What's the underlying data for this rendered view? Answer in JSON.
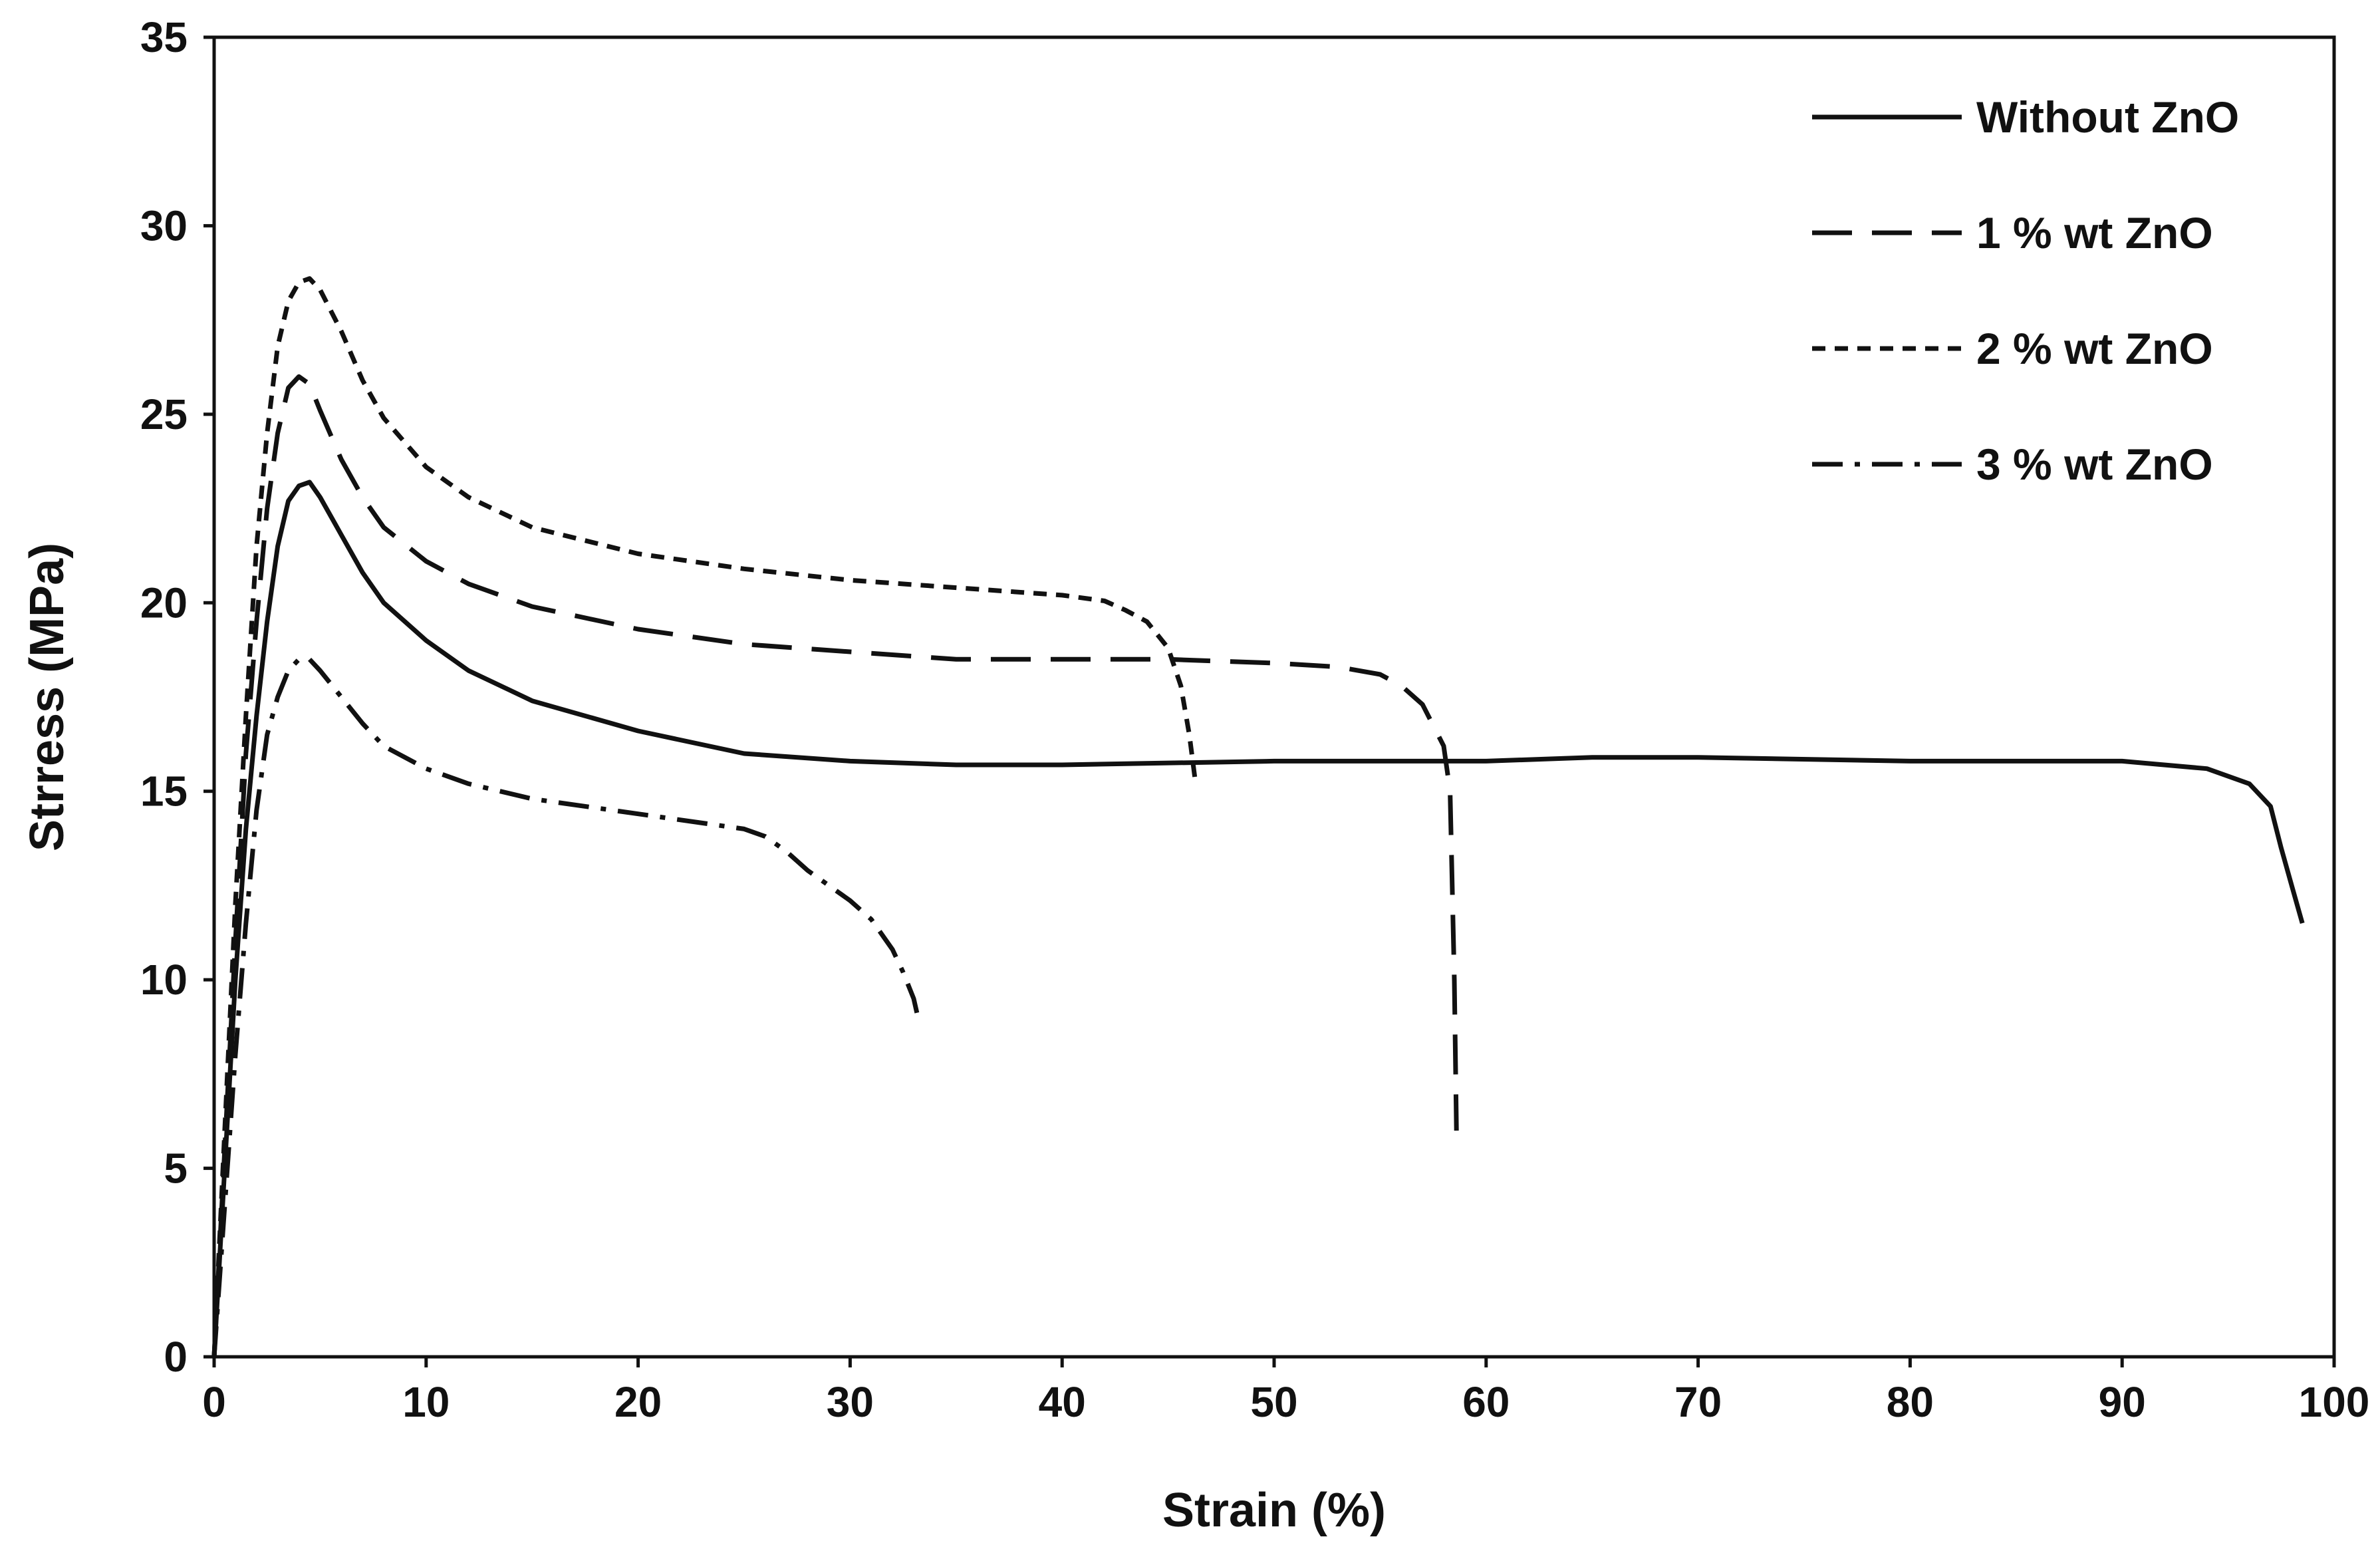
{
  "chart_data": {
    "type": "line",
    "title": "",
    "xlabel": "Strain (%)",
    "ylabel": "Strress  (MPa)",
    "xlim": [
      0,
      100
    ],
    "ylim": [
      0,
      35
    ],
    "xticks": [
      "0",
      "10",
      "20",
      "30",
      "40",
      "50",
      "60",
      "70",
      "80",
      "90",
      "100"
    ],
    "yticks": [
      "0",
      "5",
      "10",
      "15",
      "20",
      "25",
      "30",
      "35"
    ],
    "grid": false,
    "legend_position": "top-right",
    "series": [
      {
        "name": "Without ZnO",
        "dash": "solid",
        "points": [
          [
            0,
            0
          ],
          [
            0.5,
            5
          ],
          [
            1,
            10
          ],
          [
            1.5,
            14
          ],
          [
            2,
            17
          ],
          [
            2.5,
            19.5
          ],
          [
            3,
            21.5
          ],
          [
            3.5,
            22.7
          ],
          [
            4,
            23.1
          ],
          [
            4.5,
            23.2
          ],
          [
            5,
            22.8
          ],
          [
            6,
            21.8
          ],
          [
            7,
            20.8
          ],
          [
            8,
            20
          ],
          [
            10,
            19
          ],
          [
            12,
            18.2
          ],
          [
            15,
            17.4
          ],
          [
            20,
            16.6
          ],
          [
            25,
            16
          ],
          [
            30,
            15.8
          ],
          [
            35,
            15.7
          ],
          [
            40,
            15.7
          ],
          [
            50,
            15.8
          ],
          [
            60,
            15.8
          ],
          [
            65,
            15.9
          ],
          [
            70,
            15.9
          ],
          [
            80,
            15.8
          ],
          [
            90,
            15.8
          ],
          [
            94,
            15.6
          ],
          [
            96,
            15.2
          ],
          [
            97,
            14.6
          ],
          [
            97.5,
            13.5
          ],
          [
            98,
            12.5
          ],
          [
            98.5,
            11.5
          ]
        ]
      },
      {
        "name": "1 % wt ZnO",
        "dash": "long-dash",
        "points": [
          [
            0,
            0
          ],
          [
            0.5,
            5.5
          ],
          [
            1,
            11
          ],
          [
            1.5,
            16
          ],
          [
            2,
            19.5
          ],
          [
            2.5,
            22.5
          ],
          [
            3,
            24.5
          ],
          [
            3.5,
            25.7
          ],
          [
            4,
            26
          ],
          [
            4.5,
            25.8
          ],
          [
            5,
            25.1
          ],
          [
            6,
            23.8
          ],
          [
            7,
            22.8
          ],
          [
            8,
            22
          ],
          [
            10,
            21.1
          ],
          [
            12,
            20.5
          ],
          [
            15,
            19.9
          ],
          [
            20,
            19.3
          ],
          [
            25,
            18.9
          ],
          [
            30,
            18.7
          ],
          [
            35,
            18.5
          ],
          [
            40,
            18.5
          ],
          [
            45,
            18.5
          ],
          [
            50,
            18.4
          ],
          [
            53,
            18.3
          ],
          [
            55,
            18.1
          ],
          [
            56,
            17.8
          ],
          [
            57,
            17.3
          ],
          [
            58,
            16.2
          ],
          [
            58.3,
            15
          ],
          [
            58.5,
            10
          ],
          [
            58.6,
            6
          ]
        ]
      },
      {
        "name": "2 % wt ZnO",
        "dash": "short-dash",
        "points": [
          [
            0,
            0
          ],
          [
            0.5,
            6
          ],
          [
            1,
            12
          ],
          [
            1.5,
            17
          ],
          [
            2,
            21.5
          ],
          [
            2.5,
            24.5
          ],
          [
            3,
            26.8
          ],
          [
            3.5,
            28
          ],
          [
            4,
            28.5
          ],
          [
            4.5,
            28.6
          ],
          [
            5,
            28.3
          ],
          [
            6,
            27.2
          ],
          [
            7,
            25.9
          ],
          [
            8,
            24.9
          ],
          [
            10,
            23.6
          ],
          [
            12,
            22.8
          ],
          [
            15,
            22
          ],
          [
            20,
            21.3
          ],
          [
            25,
            20.9
          ],
          [
            30,
            20.6
          ],
          [
            35,
            20.4
          ],
          [
            40,
            20.2
          ],
          [
            42,
            20.05
          ],
          [
            43,
            19.8
          ],
          [
            44,
            19.5
          ],
          [
            45,
            18.8
          ],
          [
            45.6,
            17.8
          ],
          [
            46,
            16.5
          ],
          [
            46.3,
            15.2
          ]
        ]
      },
      {
        "name": "3 % wt ZnO",
        "dash": "dash-dot",
        "points": [
          [
            0,
            0
          ],
          [
            0.5,
            4
          ],
          [
            1,
            8
          ],
          [
            1.5,
            11.5
          ],
          [
            2,
            14.5
          ],
          [
            2.5,
            16.5
          ],
          [
            3,
            17.5
          ],
          [
            3.5,
            18.2
          ],
          [
            4,
            18.5
          ],
          [
            4.5,
            18.5
          ],
          [
            5,
            18.2
          ],
          [
            6,
            17.5
          ],
          [
            7,
            16.8
          ],
          [
            8,
            16.2
          ],
          [
            10,
            15.6
          ],
          [
            12,
            15.2
          ],
          [
            15,
            14.8
          ],
          [
            20,
            14.4
          ],
          [
            25,
            14
          ],
          [
            26,
            13.8
          ],
          [
            27,
            13.4
          ],
          [
            28,
            12.9
          ],
          [
            30,
            12.1
          ],
          [
            31,
            11.6
          ],
          [
            32,
            10.8
          ],
          [
            32.5,
            10.2
          ],
          [
            33,
            9.5
          ],
          [
            33.2,
            9
          ]
        ]
      }
    ]
  }
}
